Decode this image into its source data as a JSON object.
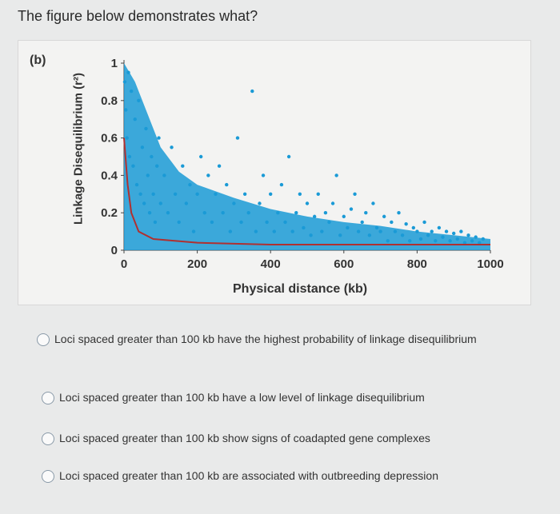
{
  "question": "The figure below demonstrates what?",
  "figure": {
    "panel_label": "(b)",
    "ylabel": "Linkage Disequilibrium (r²)",
    "xlabel": "Physical distance (kb)"
  },
  "chart_data": {
    "type": "scatter",
    "ylabel": "Linkage Disequilibrium (r²)",
    "xlabel": "Physical distance (kb)",
    "xlim": [
      0,
      1000
    ],
    "ylim": [
      0,
      1
    ],
    "x_ticks": [
      "0",
      "200",
      "400",
      "600",
      "800",
      "1000"
    ],
    "y_ticks": [
      "0",
      "0.2",
      "0.4",
      "0.6",
      "0.8",
      "1"
    ],
    "point_color": "#1a9ad6",
    "trend_color": "#b03030",
    "series": [
      {
        "values": [
          [
            2,
            0.9
          ],
          [
            5,
            0.75
          ],
          [
            8,
            0.6
          ],
          [
            12,
            0.95
          ],
          [
            15,
            0.5
          ],
          [
            20,
            0.85
          ],
          [
            25,
            0.45
          ],
          [
            30,
            0.7
          ],
          [
            35,
            0.35
          ],
          [
            40,
            0.8
          ],
          [
            45,
            0.3
          ],
          [
            50,
            0.55
          ],
          [
            55,
            0.25
          ],
          [
            60,
            0.65
          ],
          [
            65,
            0.4
          ],
          [
            70,
            0.2
          ],
          [
            75,
            0.5
          ],
          [
            80,
            0.3
          ],
          [
            85,
            0.15
          ],
          [
            90,
            0.45
          ],
          [
            95,
            0.6
          ],
          [
            100,
            0.25
          ],
          [
            110,
            0.4
          ],
          [
            120,
            0.2
          ],
          [
            130,
            0.55
          ],
          [
            140,
            0.3
          ],
          [
            150,
            0.15
          ],
          [
            160,
            0.45
          ],
          [
            170,
            0.25
          ],
          [
            180,
            0.35
          ],
          [
            190,
            0.1
          ],
          [
            200,
            0.3
          ],
          [
            210,
            0.5
          ],
          [
            220,
            0.2
          ],
          [
            230,
            0.4
          ],
          [
            240,
            0.15
          ],
          [
            250,
            0.3
          ],
          [
            260,
            0.45
          ],
          [
            270,
            0.2
          ],
          [
            280,
            0.35
          ],
          [
            290,
            0.1
          ],
          [
            300,
            0.25
          ],
          [
            310,
            0.6
          ],
          [
            320,
            0.15
          ],
          [
            330,
            0.3
          ],
          [
            340,
            0.2
          ],
          [
            350,
            0.85
          ],
          [
            360,
            0.1
          ],
          [
            370,
            0.25
          ],
          [
            380,
            0.4
          ],
          [
            390,
            0.15
          ],
          [
            400,
            0.3
          ],
          [
            410,
            0.1
          ],
          [
            420,
            0.2
          ],
          [
            430,
            0.35
          ],
          [
            440,
            0.15
          ],
          [
            450,
            0.5
          ],
          [
            460,
            0.1
          ],
          [
            470,
            0.2
          ],
          [
            480,
            0.3
          ],
          [
            490,
            0.12
          ],
          [
            500,
            0.25
          ],
          [
            510,
            0.08
          ],
          [
            520,
            0.18
          ],
          [
            530,
            0.3
          ],
          [
            540,
            0.1
          ],
          [
            550,
            0.2
          ],
          [
            560,
            0.15
          ],
          [
            570,
            0.25
          ],
          [
            580,
            0.4
          ],
          [
            590,
            0.08
          ],
          [
            600,
            0.18
          ],
          [
            610,
            0.12
          ],
          [
            620,
            0.22
          ],
          [
            630,
            0.3
          ],
          [
            640,
            0.1
          ],
          [
            650,
            0.15
          ],
          [
            660,
            0.2
          ],
          [
            670,
            0.08
          ],
          [
            680,
            0.25
          ],
          [
            690,
            0.12
          ],
          [
            700,
            0.1
          ],
          [
            710,
            0.18
          ],
          [
            720,
            0.05
          ],
          [
            730,
            0.15
          ],
          [
            740,
            0.1
          ],
          [
            750,
            0.2
          ],
          [
            760,
            0.08
          ],
          [
            770,
            0.14
          ],
          [
            780,
            0.05
          ],
          [
            790,
            0.12
          ],
          [
            800,
            0.1
          ],
          [
            810,
            0.06
          ],
          [
            820,
            0.15
          ],
          [
            830,
            0.08
          ],
          [
            840,
            0.1
          ],
          [
            850,
            0.05
          ],
          [
            860,
            0.12
          ],
          [
            870,
            0.07
          ],
          [
            880,
            0.1
          ],
          [
            890,
            0.05
          ],
          [
            900,
            0.09
          ],
          [
            910,
            0.06
          ],
          [
            920,
            0.1
          ],
          [
            930,
            0.04
          ],
          [
            940,
            0.08
          ],
          [
            950,
            0.05
          ],
          [
            960,
            0.07
          ],
          [
            970,
            0.04
          ],
          [
            980,
            0.06
          ]
        ]
      }
    ],
    "trend": [
      [
        0,
        0.6
      ],
      [
        10,
        0.35
      ],
      [
        20,
        0.2
      ],
      [
        40,
        0.1
      ],
      [
        80,
        0.06
      ],
      [
        200,
        0.04
      ],
      [
        400,
        0.03
      ],
      [
        600,
        0.03
      ],
      [
        800,
        0.03
      ],
      [
        1000,
        0.03
      ]
    ]
  },
  "options": [
    {
      "label": "Loci spaced greater than 100 kb have the highest probability of linkage disequilibrium"
    },
    {
      "label": "Loci spaced greater than 100 kb have a low level of linkage disequilibrium"
    },
    {
      "label": "Loci spaced greater than 100 kb show signs of coadapted gene complexes"
    },
    {
      "label": "Loci spaced greater than 100 kb are associated with outbreeding depression"
    }
  ]
}
